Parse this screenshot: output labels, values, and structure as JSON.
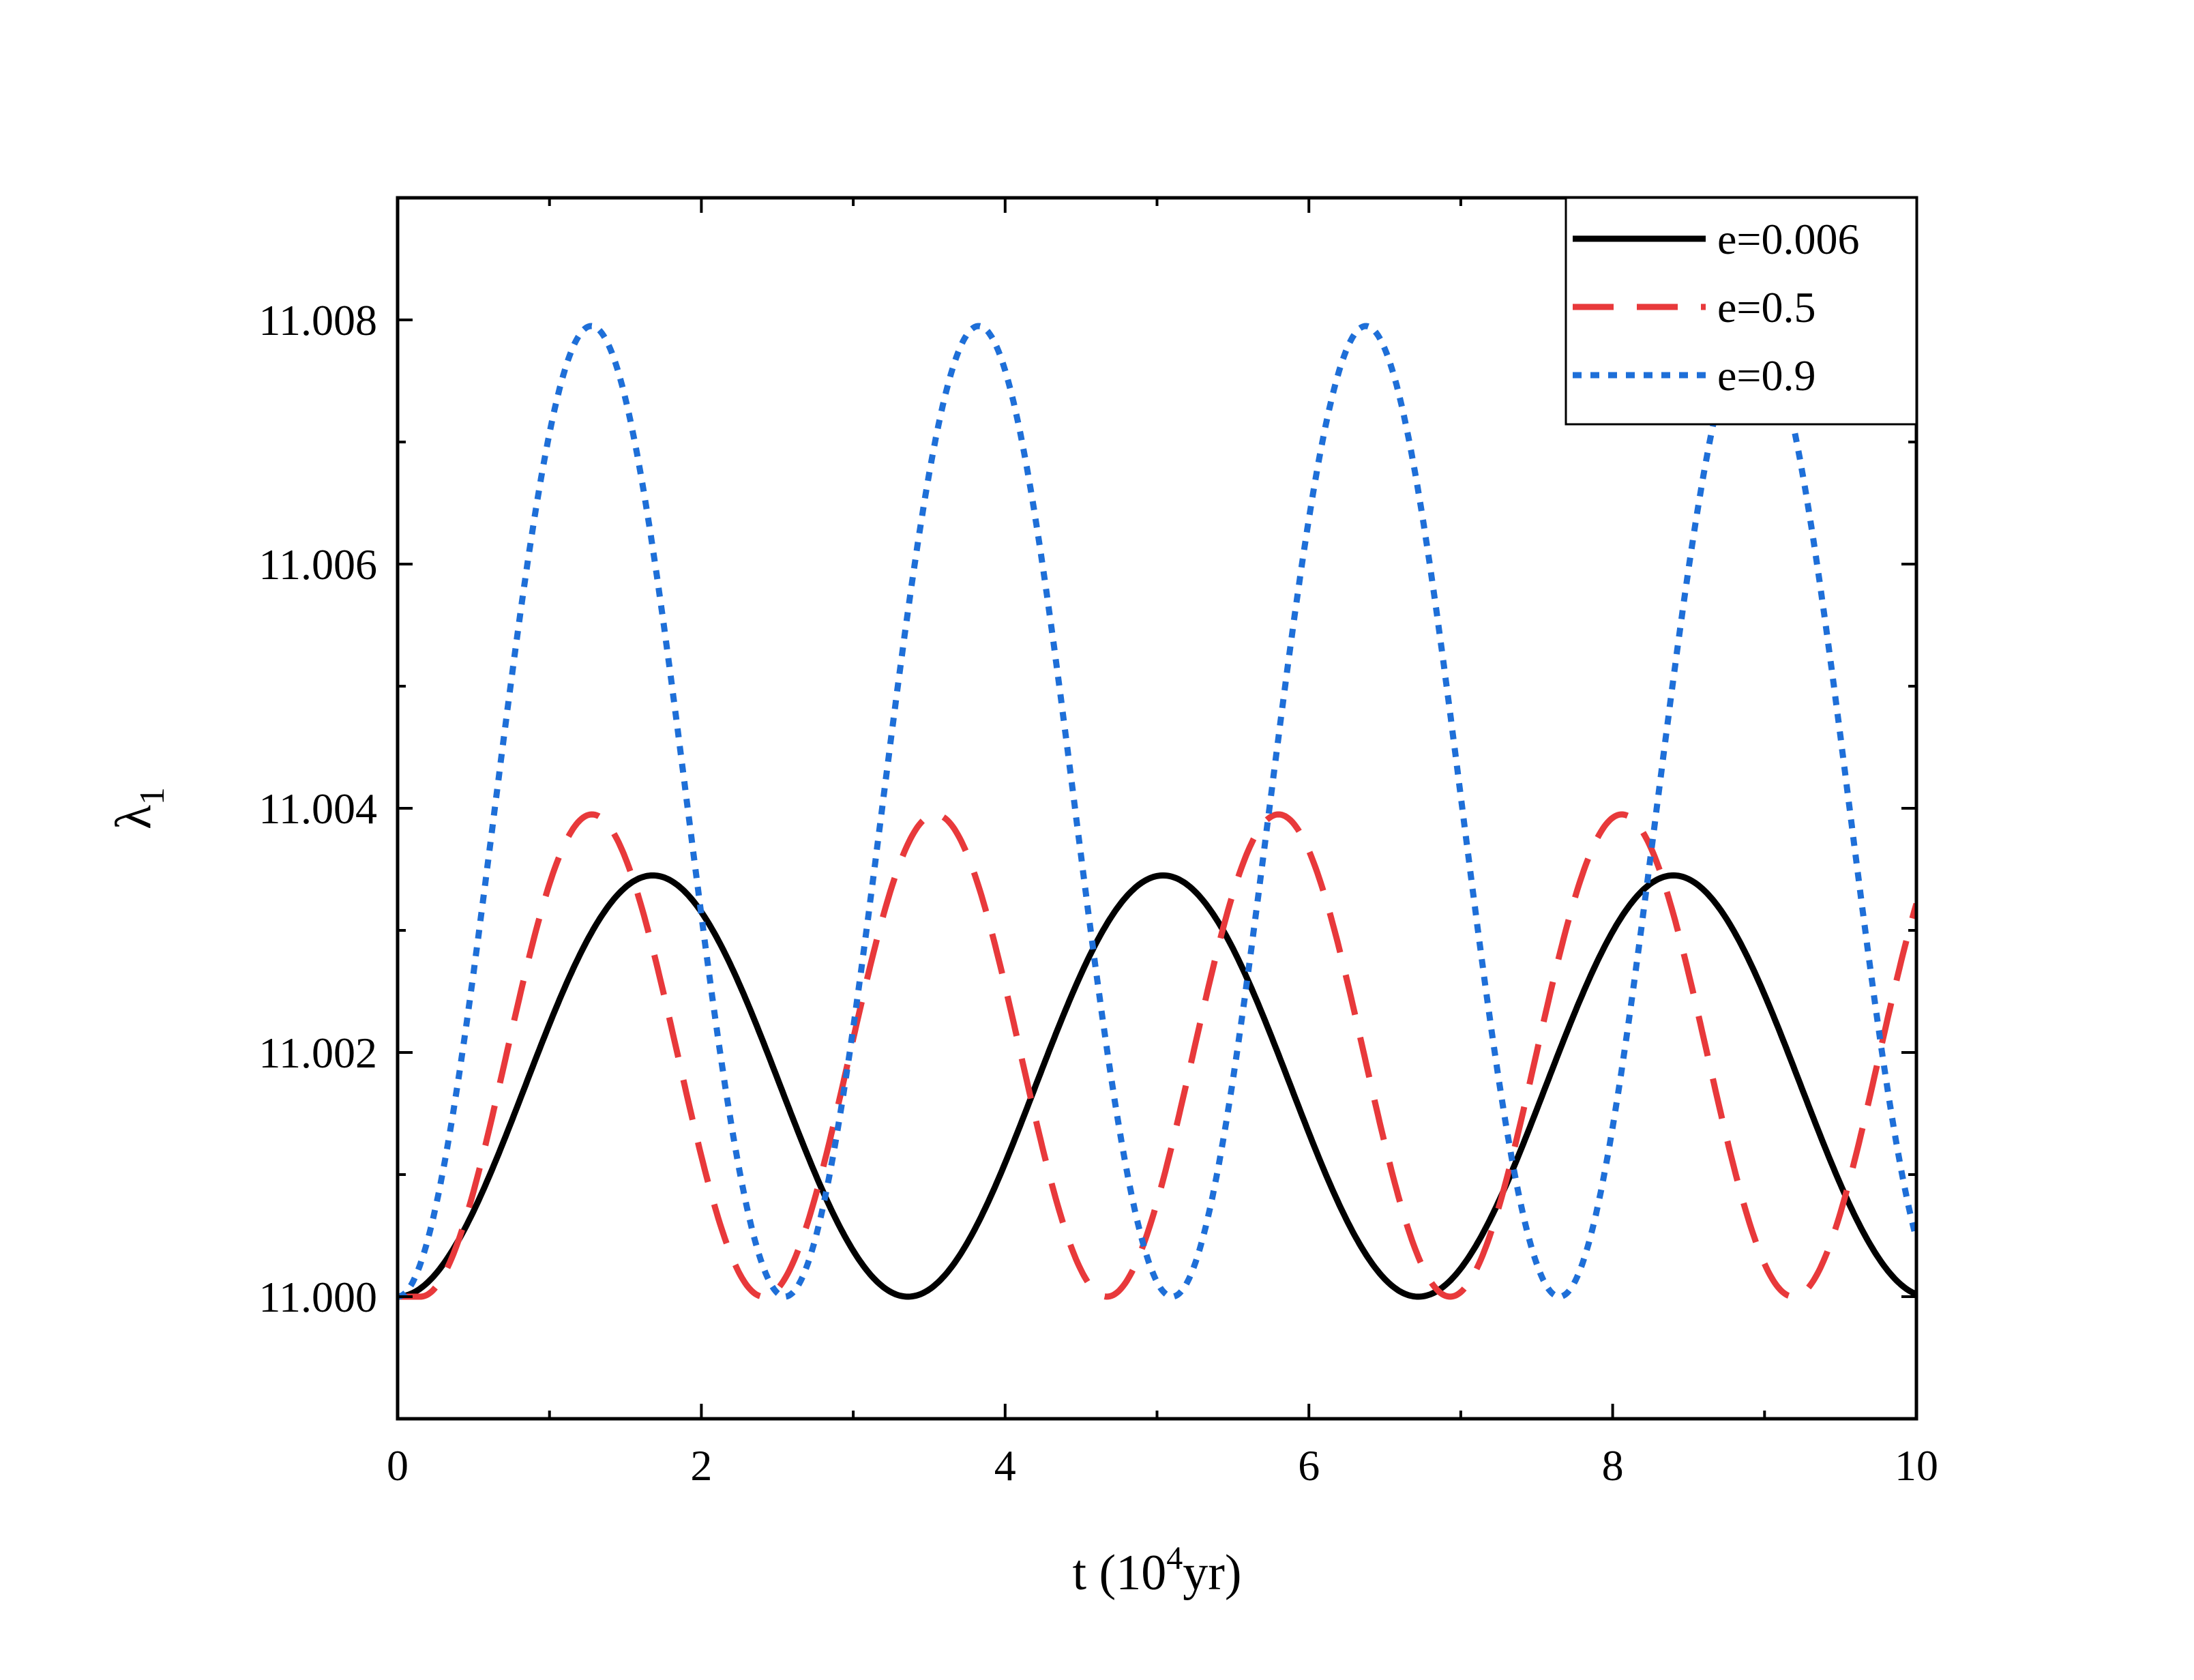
{
  "chart_data": {
    "type": "line",
    "title": "",
    "xlabel": {
      "prefix": "t (10",
      "sup": "4",
      "suffix": "yr)"
    },
    "ylabel": {
      "main": "λ",
      "sub": "1"
    },
    "xlim": [
      0,
      10
    ],
    "ylim": [
      10.999,
      11.009
    ],
    "x_ticks": [
      0,
      2,
      4,
      6,
      8,
      10
    ],
    "x_tick_labels": [
      "0",
      "2",
      "4",
      "6",
      "8",
      "10"
    ],
    "x_minor_ticks": [
      1,
      3,
      5,
      7,
      9
    ],
    "y_ticks": [
      11.0,
      11.002,
      11.004,
      11.006,
      11.008
    ],
    "y_tick_labels": [
      "11.000",
      "11.002",
      "11.004",
      "11.006",
      "11.008"
    ],
    "y_minor_ticks": [
      11.001,
      11.003,
      11.005,
      11.007
    ],
    "grid": false,
    "legend_position": "top-right",
    "series": [
      {
        "name": "e=0.006",
        "color": "#000000",
        "dash": "solid",
        "base": 11.0,
        "amplitude": 0.00345,
        "period": 3.36,
        "phase": 0.0
      },
      {
        "name": "e=0.5",
        "color": "#e8393b",
        "dash": "dashed",
        "base": 11.0,
        "amplitude": 0.00395,
        "period": 2.26,
        "phase": 0.15
      },
      {
        "name": "e=0.9",
        "color": "#1e6fd8",
        "dash": "dotted",
        "base": 11.0,
        "amplitude": 0.00795,
        "period": 2.55,
        "phase": 0.0
      }
    ]
  }
}
